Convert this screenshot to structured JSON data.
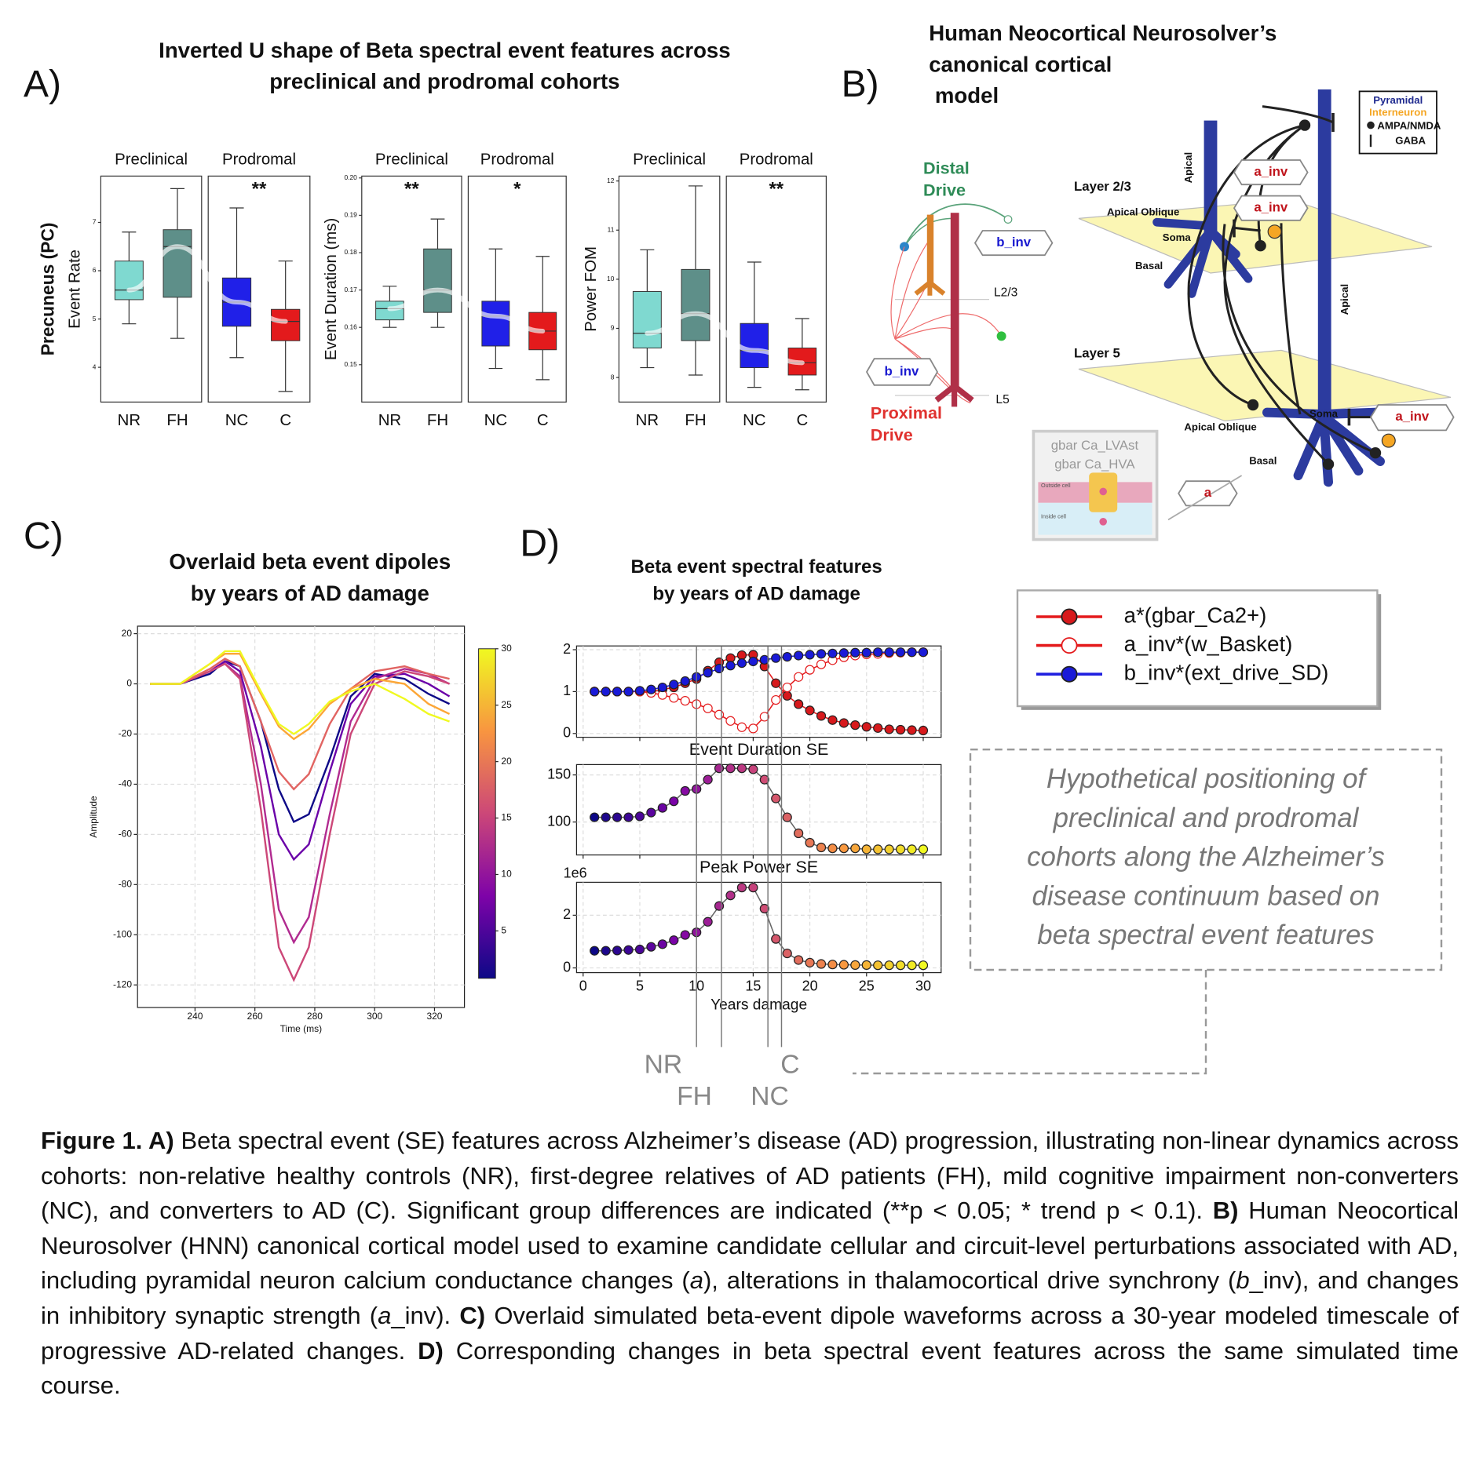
{
  "figure_a": {
    "label": "A)",
    "title": [
      "Inverted U shape of Beta spectral event features across",
      "preclinical and prodromal cohorts"
    ]
  },
  "diagram": {
    "label": "B)",
    "title": [
      "Human Neocortical Neurosolver’s",
      "canonical cortical",
      " model"
    ],
    "distal_drive": [
      "Distal",
      "Drive"
    ],
    "proximal_drive": [
      "Proximal",
      "Drive"
    ],
    "b_inv_top": "b_inv",
    "b_inv_bottom": "b_inv",
    "l23": "L2/3",
    "l5": "L5",
    "legend": [
      "Pyramidal",
      "Interneuron",
      "AMPA/NMDA",
      "GABA"
    ],
    "layer23": "Layer 2/3",
    "layer5": "Layer 5",
    "apical_oblique_23": "Apical Oblique",
    "soma_23": "Soma",
    "basal_23": "Basal",
    "apical_23": "Apical",
    "a_inv_1": "a_inv",
    "a_inv_2": "a_inv",
    "apical_5": "Apical",
    "soma_5": "Soma",
    "apical_oblique_5": "Apical Oblique",
    "basal_5": "Basal",
    "a_inv_3": "a_inv",
    "a": "a",
    "inset": [
      "gbar Ca_LVAst",
      "gbar Ca_HVA",
      "Outside cell",
      "Inside cell"
    ]
  },
  "figure_c": {
    "label": "C)",
    "title": [
      "Overlaid beta event dipoles",
      "by years of AD damage"
    ]
  },
  "figure_d": {
    "label": "D)",
    "title": [
      "Beta event spectral features",
      "by years of AD damage"
    ],
    "markers": [
      {
        "label": "NR",
        "x": 10
      },
      {
        "label": "FH",
        "x": 12.2
      },
      {
        "label": "NC",
        "x": 16.3
      },
      {
        "label": "C",
        "x": 17.5
      }
    ]
  },
  "hypothesis": [
    "Hypothetical positioning of",
    "preclinical and prodromal",
    "cohorts along the Alzheimer’s",
    "disease continuum based on",
    "beta spectral event features"
  ],
  "chart_data": [
    {
      "type": "box",
      "ylabel_bold": "Precuneus (PC)",
      "ylabel": "Event Rate",
      "group_labels": [
        "Preclinical",
        "Prodromal"
      ],
      "group_annotations": [
        null,
        "**"
      ],
      "categories": [
        "NR",
        "FH",
        "NC",
        "C"
      ],
      "colors": [
        "#7fd9d0",
        "#5e8f89",
        "#2020e8",
        "#e31a1c"
      ],
      "boxes": [
        {
          "low": 4.9,
          "q1": 5.4,
          "median": 5.6,
          "q3": 6.2,
          "high": 6.8
        },
        {
          "low": 4.6,
          "q1": 5.45,
          "median": 6.5,
          "q3": 6.85,
          "high": 7.7
        },
        {
          "low": 4.2,
          "q1": 4.85,
          "median": 5.35,
          "q3": 5.85,
          "high": 7.3
        },
        {
          "low": 3.5,
          "q1": 4.55,
          "median": 4.95,
          "q3": 5.2,
          "high": 6.2
        }
      ],
      "ylim": [
        3.28,
        7.96
      ],
      "yticks": [
        4,
        5,
        6,
        7
      ]
    },
    {
      "type": "box",
      "ylabel": "Event Duration (ms)",
      "group_labels": [
        "Preclinical",
        "Prodromal"
      ],
      "group_annotations": [
        "**",
        "*"
      ],
      "categories": [
        "NR",
        "FH",
        "NC",
        "C"
      ],
      "colors": [
        "#7fd9d0",
        "#5e8f89",
        "#2020e8",
        "#e31a1c"
      ],
      "boxes": [
        {
          "low": 0.16,
          "q1": 0.162,
          "median": 0.165,
          "q3": 0.167,
          "high": 0.171
        },
        {
          "low": 0.16,
          "q1": 0.164,
          "median": 0.17,
          "q3": 0.181,
          "high": 0.189
        },
        {
          "low": 0.149,
          "q1": 0.155,
          "median": 0.163,
          "q3": 0.167,
          "high": 0.181
        },
        {
          "low": 0.146,
          "q1": 0.154,
          "median": 0.159,
          "q3": 0.164,
          "high": 0.179
        }
      ],
      "ylim": [
        0.14,
        0.2005
      ],
      "yticks": [
        0.15,
        0.16,
        0.17,
        0.18,
        0.19,
        {
          "value": 0.2,
          "label": "0.20"
        }
      ]
    },
    {
      "type": "box",
      "ylabel": "Power FOM",
      "group_labels": [
        "Preclinical",
        "Prodromal"
      ],
      "group_annotations": [
        null,
        "**"
      ],
      "categories": [
        "NR",
        "FH",
        "NC",
        "C"
      ],
      "colors": [
        "#7fd9d0",
        "#5e8f89",
        "#2020e8",
        "#e31a1c"
      ],
      "boxes": [
        {
          "low": 8.2,
          "q1": 8.6,
          "median": 8.9,
          "q3": 9.75,
          "high": 10.6
        },
        {
          "low": 8.05,
          "q1": 8.75,
          "median": 9.3,
          "q3": 10.2,
          "high": 11.9
        },
        {
          "low": 7.8,
          "q1": 8.2,
          "median": 8.55,
          "q3": 9.1,
          "high": 10.35
        },
        {
          "low": 7.75,
          "q1": 8.05,
          "median": 8.3,
          "q3": 8.6,
          "high": 9.2
        }
      ],
      "ylim": [
        7.5,
        12.1
      ],
      "yticks": [
        8,
        9,
        10,
        11,
        12
      ]
    },
    {
      "type": "line",
      "xlabel": "Time (ms)",
      "ylabel": "Amplitude",
      "grid": true,
      "x": [
        225,
        235,
        245,
        250,
        255,
        262,
        268,
        273,
        278,
        285,
        292,
        300,
        310,
        318,
        325
      ],
      "series": [
        {
          "color": "#0d0887",
          "values": [
            0,
            0,
            4,
            9,
            7,
            -15,
            -42,
            -55,
            -52,
            -30,
            -5,
            4,
            2,
            -4,
            -8
          ]
        },
        {
          "color": "#6a00a8",
          "values": [
            0,
            0,
            5,
            9,
            5,
            -25,
            -60,
            -70,
            -64,
            -35,
            -8,
            3,
            4,
            0,
            -5
          ]
        },
        {
          "color": "#b12a90",
          "values": [
            0,
            0,
            5,
            8,
            3,
            -40,
            -90,
            -103,
            -93,
            -52,
            -15,
            2,
            6,
            4,
            0
          ]
        },
        {
          "color": "#cc4778",
          "values": [
            0,
            0,
            5,
            8,
            2,
            -50,
            -105,
            -118,
            -105,
            -60,
            -20,
            0,
            5,
            3,
            0
          ]
        },
        {
          "color": "#e16462",
          "values": [
            0,
            0,
            6,
            10,
            7,
            -15,
            -35,
            -42,
            -36,
            -16,
            -2,
            5,
            7,
            4,
            2
          ]
        },
        {
          "color": "#fca636",
          "values": [
            0,
            0,
            8,
            12,
            12,
            -4,
            -17,
            -22,
            -18,
            -8,
            -2,
            2,
            0,
            -8,
            -12
          ]
        },
        {
          "color": "#f0f921",
          "values": [
            0,
            0,
            8,
            13,
            13,
            -3,
            -16,
            -20,
            -16,
            -7,
            -3,
            0,
            -6,
            -12,
            -15
          ]
        }
      ],
      "xlim": [
        220.8,
        330
      ],
      "xticks": [
        240,
        260,
        280,
        300,
        320
      ],
      "ylim": [
        -129,
        23
      ],
      "yticks": [
        -120,
        -100,
        -80,
        -60,
        -40,
        -20,
        0,
        20
      ],
      "colorbar": {
        "lim": [
          0.8,
          30
        ],
        "ticks": [
          5,
          10,
          15,
          20,
          25,
          30
        ],
        "colormap": [
          "#0d0887",
          "#7e03a8",
          "#cc4778",
          "#f89540",
          "#f0f921"
        ]
      }
    },
    {
      "type": "line",
      "markers": true,
      "grid": true,
      "legend": true,
      "xtick_labels": false,
      "x": [
        1,
        2,
        3,
        4,
        5,
        6,
        7,
        8,
        9,
        10,
        11,
        12,
        13,
        14,
        15,
        16,
        17,
        18,
        19,
        20,
        21,
        22,
        23,
        24,
        25,
        26,
        27,
        28,
        29,
        30
      ],
      "series": [
        {
          "name": "a*(gbar_Ca2+)",
          "color": "#e41a1c",
          "marker_fill": "#d7191c",
          "marker_edge": "#222222",
          "values": [
            1,
            1,
            1,
            1,
            1,
            1.0,
            1.05,
            1.1,
            1.2,
            1.3,
            1.5,
            1.7,
            1.8,
            1.87,
            1.88,
            1.6,
            1.2,
            0.9,
            0.7,
            0.55,
            0.42,
            0.32,
            0.25,
            0.2,
            0.16,
            0.13,
            0.1,
            0.09,
            0.08,
            0.07
          ]
        },
        {
          "name": "a_inv*(w_Basket)",
          "color": "#e41a1c",
          "marker_fill": "#ffffff",
          "marker_edge": "#e41a1c",
          "values": [
            1,
            1,
            1,
            1,
            1,
            0.97,
            0.92,
            0.85,
            0.78,
            0.7,
            0.6,
            0.45,
            0.3,
            0.15,
            0.12,
            0.4,
            0.8,
            1.1,
            1.35,
            1.52,
            1.65,
            1.75,
            1.82,
            1.86,
            1.89,
            1.9,
            1.92,
            1.93,
            1.94,
            1.94
          ]
        },
        {
          "name": "b_inv*(ext_drive_SD)",
          "color": "#1f1fe0",
          "marker_fill": "#1a1ad8",
          "marker_edge": "#222222",
          "values": [
            1,
            1,
            1,
            1,
            1.02,
            1.05,
            1.1,
            1.17,
            1.25,
            1.35,
            1.45,
            1.55,
            1.62,
            1.68,
            1.72,
            1.76,
            1.8,
            1.83,
            1.86,
            1.88,
            1.9,
            1.91,
            1.92,
            1.93,
            1.93,
            1.94,
            1.94,
            1.94,
            1.94,
            1.94
          ]
        }
      ],
      "xlim": [
        -0.58,
        31.58
      ],
      "xticks": [
        0,
        5,
        10,
        15,
        20,
        25,
        30
      ],
      "ylim": [
        -0.09,
        2.09
      ],
      "yticks": [
        0,
        1,
        2
      ]
    },
    {
      "type": "line",
      "markers": true,
      "grid": true,
      "xtick_labels": false,
      "title": "Event Duration SE",
      "line_color": "#666666",
      "marker_edge": "#222222",
      "colormap": [
        "#0d0887",
        "#7e03a8",
        "#cc4778",
        "#f89540",
        "#f0f921"
      ],
      "x": [
        1,
        2,
        3,
        4,
        5,
        6,
        7,
        8,
        9,
        10,
        11,
        12,
        13,
        14,
        15,
        16,
        17,
        18,
        19,
        20,
        21,
        22,
        23,
        24,
        25,
        26,
        27,
        28,
        29,
        30
      ],
      "series": [
        {
          "values": [
            105,
            105,
            105,
            105,
            106,
            110,
            115,
            122,
            133,
            135,
            145,
            157,
            157,
            157,
            156,
            145,
            125,
            105,
            88,
            78,
            73,
            72,
            72,
            72,
            71,
            71,
            71,
            71,
            71,
            71
          ]
        }
      ],
      "xlim": [
        -0.58,
        31.58
      ],
      "xticks": [
        0,
        5,
        10,
        15,
        20,
        25,
        30
      ],
      "ylim": [
        65,
        161
      ],
      "yticks": [
        100,
        150
      ]
    },
    {
      "type": "line",
      "markers": true,
      "grid": true,
      "title": "Peak Power SE",
      "offset_label": "1e6",
      "xlabel": "Years damage",
      "line_color": "#666666",
      "marker_edge": "#222222",
      "colormap": [
        "#0d0887",
        "#7e03a8",
        "#cc4778",
        "#f89540",
        "#f0f921"
      ],
      "x": [
        1,
        2,
        3,
        4,
        5,
        6,
        7,
        8,
        9,
        10,
        11,
        12,
        13,
        14,
        15,
        16,
        17,
        18,
        19,
        20,
        21,
        22,
        23,
        24,
        25,
        26,
        27,
        28,
        29,
        30
      ],
      "series": [
        {
          "values": [
            0.65,
            0.65,
            0.66,
            0.68,
            0.7,
            0.8,
            0.9,
            1.05,
            1.25,
            1.35,
            1.75,
            2.35,
            2.75,
            3.05,
            3.05,
            2.25,
            1.1,
            0.55,
            0.3,
            0.2,
            0.15,
            0.13,
            0.12,
            0.11,
            0.11,
            0.1,
            0.1,
            0.1,
            0.1,
            0.1
          ]
        }
      ],
      "xlim": [
        -0.58,
        31.58
      ],
      "xticks": [
        0,
        5,
        10,
        15,
        20,
        25,
        30
      ],
      "ylim": [
        -0.18,
        3.25
      ],
      "yticks": [
        0,
        2
      ]
    }
  ],
  "caption": [
    {
      "text": "Figure 1. A)",
      "style": "bold"
    },
    {
      "text": " Beta spectral event (SE) features across Alzheimer’s disease (AD) progression, illustrating non-linear dynamics across cohorts: non-relative healthy controls (NR), first-degree relatives of AD patients (FH), mild cognitive impairment non-converters (NC), and converters to AD (C). Significant group differences are indicated (**p < 0.05; * trend p < 0.1). ",
      "style": "normal"
    },
    {
      "text": "B)",
      "style": "bold"
    },
    {
      "text": " Human Neocortical Neurosolver (HNN) canonical cortical model used to examine candidate cellular and circuit-level perturbations associated with AD, including pyramidal neuron calcium conductance changes (",
      "style": "normal"
    },
    {
      "text": "a",
      "style": "italic"
    },
    {
      "text": "), alterations in thalamocortical drive synchrony (",
      "style": "normal"
    },
    {
      "text": "b",
      "style": "italic"
    },
    {
      "text": "_inv), and changes in inhibitory synaptic strength (",
      "style": "normal"
    },
    {
      "text": "a",
      "style": "italic"
    },
    {
      "text": "_inv). ",
      "style": "normal"
    },
    {
      "text": "C)",
      "style": "bold"
    },
    {
      "text": " Overlaid simulated beta-event dipole waveforms across a 30-year modeled timescale of progressive AD-related changes. ",
      "style": "normal"
    },
    {
      "text": "D)",
      "style": "bold"
    },
    {
      "text": " Corresponding changes in beta spectral event features across the same simulated time course.",
      "style": "normal"
    }
  ]
}
